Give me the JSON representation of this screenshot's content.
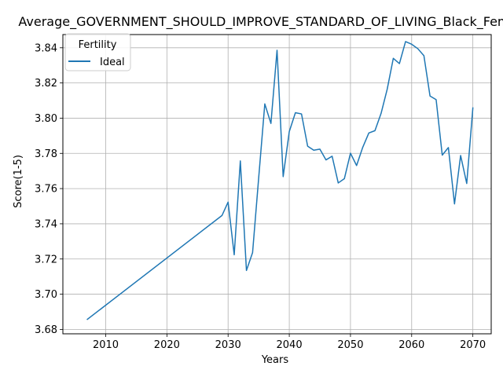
{
  "chart_data": {
    "type": "line",
    "title": "Average_GOVERNMENT_SHOULD_IMPROVE_STANDARD_OF_LIVING_Black_Female",
    "xlabel": "Years",
    "ylabel": "Score(1-5)",
    "xlim": [
      2003,
      2073
    ],
    "ylim": [
      3.6775,
      3.8475
    ],
    "xticks": [
      2010,
      2020,
      2030,
      2040,
      2050,
      2060,
      2070
    ],
    "yticks": [
      3.68,
      3.7,
      3.72,
      3.74,
      3.76,
      3.78,
      3.8,
      3.82,
      3.84
    ],
    "ytick_labels": [
      "3.68",
      "3.70",
      "3.72",
      "3.74",
      "3.76",
      "3.78",
      "3.80",
      "3.82",
      "3.84"
    ],
    "grid": true,
    "legend": {
      "title": "Fertility",
      "placement": "top-left"
    },
    "series": [
      {
        "name": "Ideal",
        "color": "#1f77b4",
        "x": [
          2007,
          2029,
          2030,
          2031,
          2032,
          2033,
          2034,
          2035,
          2036,
          2037,
          2038,
          2039,
          2040,
          2041,
          2042,
          2043,
          2044,
          2045,
          2046,
          2047,
          2048,
          2049,
          2050,
          2051,
          2052,
          2053,
          2054,
          2055,
          2056,
          2057,
          2058,
          2059,
          2060,
          2061,
          2062,
          2063,
          2064,
          2065,
          2066,
          2067,
          2068,
          2069,
          2070
        ],
        "y": [
          3.6857,
          3.7447,
          3.7523,
          3.7224,
          3.7757,
          3.7135,
          3.7236,
          3.7661,
          3.8081,
          3.797,
          3.8386,
          3.7668,
          3.7924,
          3.8031,
          3.8024,
          3.7841,
          3.7818,
          3.7824,
          3.7763,
          3.7784,
          3.7632,
          3.7656,
          3.7801,
          3.7731,
          3.7834,
          3.7916,
          3.7929,
          3.8027,
          3.8164,
          3.834,
          3.831,
          3.8435,
          3.842,
          3.8395,
          3.8355,
          3.8126,
          3.8105,
          3.779,
          3.7833,
          3.7513,
          3.7788,
          3.7629,
          3.8058
        ]
      }
    ]
  }
}
